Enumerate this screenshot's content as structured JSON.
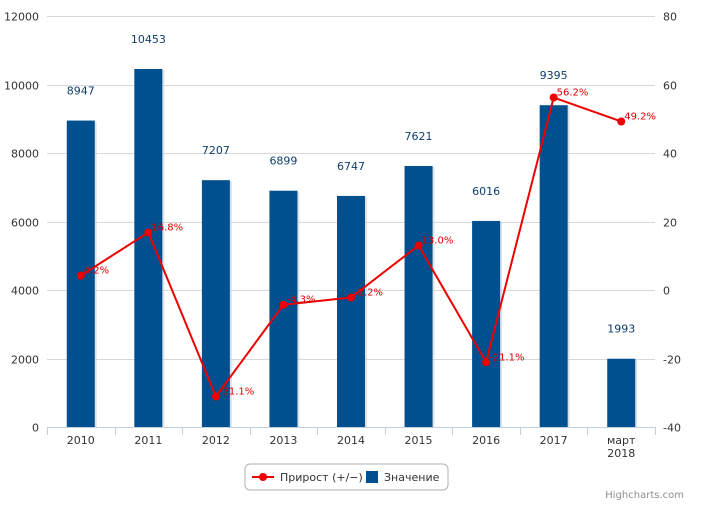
{
  "chart_data": {
    "type": "bar",
    "categories": [
      "2010",
      "2011",
      "2012",
      "2013",
      "2014",
      "2015",
      "2016",
      "2017",
      "март 2018"
    ],
    "series": [
      {
        "name": "Значение",
        "type": "bar",
        "axis": "left",
        "color": "#00508f",
        "values": [
          8947,
          10453,
          7207,
          6899,
          6747,
          7621,
          6016,
          9395,
          1993
        ]
      },
      {
        "name": "Прирост (+/−)",
        "type": "line",
        "axis": "right",
        "color": "#ee0000",
        "values": [
          4.2,
          16.8,
          -31.1,
          -4.3,
          -2.2,
          13.0,
          -21.1,
          56.2,
          49.2
        ],
        "labels": [
          "4.2%",
          "16.8%",
          "-31.1%",
          "-4.3%",
          "-2.2%",
          "13.0%",
          "-21.1%",
          "56.2%",
          "49.2%"
        ]
      }
    ],
    "y_left": {
      "min": 0,
      "max": 12000,
      "ticks": [
        0,
        2000,
        4000,
        6000,
        8000,
        10000,
        12000
      ]
    },
    "y_right": {
      "min": -40,
      "max": 80,
      "ticks": [
        -40,
        -20,
        0,
        20,
        40,
        60,
        80
      ]
    },
    "grid": true,
    "legend": {
      "position": "bottom-center",
      "items": [
        "Прирост (+/−)",
        "Значение"
      ]
    },
    "credits": "Highcharts.com"
  }
}
